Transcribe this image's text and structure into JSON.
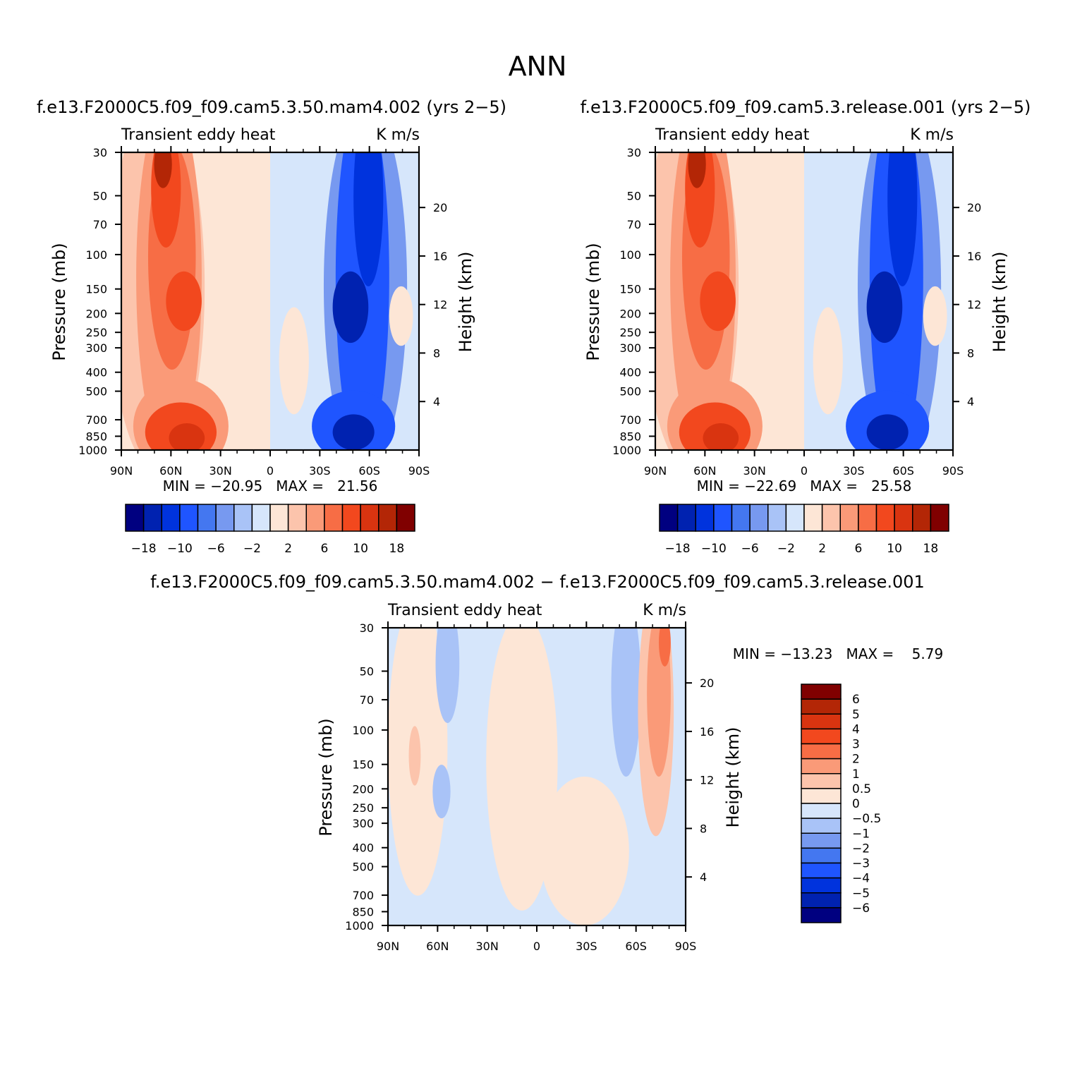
{
  "figure": {
    "title": "ANN"
  },
  "colors": {
    "panel_scale": [
      "#000080",
      "#0022b0",
      "#0033dd",
      "#1f55ff",
      "#4477f0",
      "#7799f0",
      "#a9c3f7",
      "#d6e6fb",
      "#fde6d6",
      "#fcc4ac",
      "#fa9a78",
      "#f76d45",
      "#f2481e",
      "#d93410",
      "#b32606",
      "#800000"
    ],
    "diff_scale": [
      "#000080",
      "#0022b0",
      "#0033dd",
      "#1f55ff",
      "#4477f0",
      "#7799f0",
      "#a9c3f7",
      "#d6e6fb",
      "#fde6d6",
      "#fcc4ac",
      "#fa9a78",
      "#f76d45",
      "#f2481e",
      "#d93410",
      "#b32606",
      "#800000"
    ]
  },
  "chart_data": [
    {
      "type": "heatmap",
      "title": "f.e13.F2000C5.f09_f09.cam5.3.50.mam4.002 (yrs 2−5)",
      "left_label": "Transient eddy heat",
      "right_label": "K m/s",
      "ylabel": "Pressure (mb)",
      "y2label": "Height (km)",
      "x_ticks": [
        "90N",
        "60N",
        "30N",
        "0",
        "30S",
        "60S",
        "90S"
      ],
      "y_ticks": [
        "30",
        "50",
        "70",
        "100",
        "150",
        "200",
        "250",
        "300",
        "400",
        "500",
        "700",
        "850",
        "1000"
      ],
      "y2_ticks": [
        "20",
        "16",
        "12",
        "8",
        "4"
      ],
      "min_max": "MIN = −20.95   MAX =   21.56",
      "colorbar_labels": [
        "−18",
        "−10",
        "−6",
        "−2",
        "2",
        "6",
        "10",
        "18"
      ]
    },
    {
      "type": "heatmap",
      "title": "f.e13.F2000C5.f09_f09.cam5.3.release.001 (yrs 2−5)",
      "left_label": "Transient eddy heat",
      "right_label": "K m/s",
      "ylabel": "Pressure (mb)",
      "y2label": "Height (km)",
      "x_ticks": [
        "90N",
        "60N",
        "30N",
        "0",
        "30S",
        "60S",
        "90S"
      ],
      "y_ticks": [
        "30",
        "50",
        "70",
        "100",
        "150",
        "200",
        "250",
        "300",
        "400",
        "500",
        "700",
        "850",
        "1000"
      ],
      "y2_ticks": [
        "20",
        "16",
        "12",
        "8",
        "4"
      ],
      "min_max": "MIN = −22.69   MAX =   25.58",
      "colorbar_labels": [
        "−18",
        "−10",
        "−6",
        "−2",
        "2",
        "6",
        "10",
        "18"
      ]
    },
    {
      "type": "heatmap",
      "title": "f.e13.F2000C5.f09_f09.cam5.3.50.mam4.002 − f.e13.F2000C5.f09_f09.cam5.3.release.001",
      "left_label": "Transient eddy heat",
      "right_label": "K m/s",
      "ylabel": "Pressure (mb)",
      "y2label": "Height (km)",
      "x_ticks": [
        "90N",
        "60N",
        "30N",
        "0",
        "30S",
        "60S",
        "90S"
      ],
      "y_ticks": [
        "30",
        "50",
        "70",
        "100",
        "150",
        "200",
        "250",
        "300",
        "400",
        "500",
        "700",
        "850",
        "1000"
      ],
      "y2_ticks": [
        "20",
        "16",
        "12",
        "8",
        "4"
      ],
      "min_max": "MIN = −13.23   MAX =    5.79",
      "colorbar_labels": [
        "6",
        "5",
        "4",
        "3",
        "2",
        "1",
        "0.5",
        "0",
        "−0.5",
        "−1",
        "−2",
        "−3",
        "−4",
        "−5",
        "−6"
      ]
    }
  ]
}
